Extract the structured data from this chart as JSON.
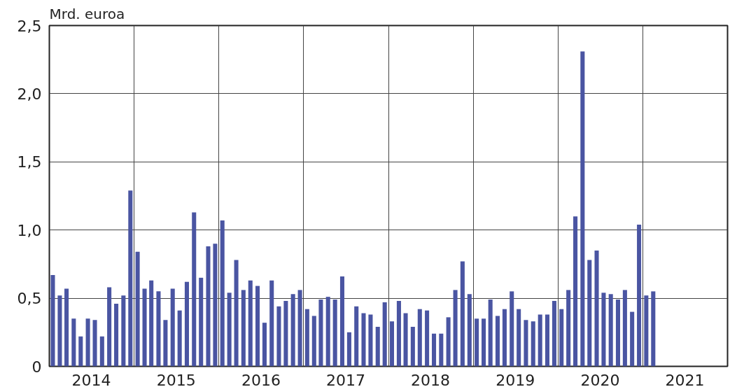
{
  "chart_data": {
    "type": "bar",
    "ylabel": "Mrd. euroa",
    "color": "#4a55a2",
    "x": [
      "2014-01-16",
      "2014-02-15",
      "2014-03-16",
      "2014-04-16",
      "2014-05-16",
      "2014-06-16",
      "2014-07-16",
      "2014-08-16",
      "2014-09-16",
      "2014-10-16",
      "2014-11-16",
      "2014-12-16",
      "2015-01-16",
      "2015-02-15",
      "2015-03-16",
      "2015-04-16",
      "2015-05-16",
      "2015-06-16",
      "2015-07-16",
      "2015-08-16",
      "2015-09-16",
      "2015-10-16",
      "2015-11-16",
      "2015-12-16",
      "2016-01-16",
      "2016-02-15",
      "2016-03-16",
      "2016-04-16",
      "2016-05-16",
      "2016-06-16",
      "2016-07-16",
      "2016-08-16",
      "2016-09-16",
      "2016-10-16",
      "2016-11-16",
      "2016-12-16",
      "2017-01-16",
      "2017-02-15",
      "2017-03-16",
      "2017-04-16",
      "2017-05-16",
      "2017-06-16",
      "2017-07-16",
      "2017-08-16",
      "2017-09-16",
      "2017-10-16",
      "2017-11-16",
      "2017-12-16",
      "2018-01-16",
      "2018-02-15",
      "2018-03-16",
      "2018-04-16",
      "2018-05-16",
      "2018-06-16",
      "2018-07-16",
      "2018-08-16",
      "2018-09-16",
      "2018-10-16",
      "2018-11-16",
      "2018-12-16",
      "2019-01-16",
      "2019-02-15",
      "2019-03-16",
      "2019-04-16",
      "2019-05-16",
      "2019-06-16",
      "2019-07-16",
      "2019-08-16",
      "2019-09-16",
      "2019-10-16",
      "2019-11-16",
      "2019-12-16",
      "2020-01-16",
      "2020-02-15",
      "2020-03-16",
      "2020-04-16",
      "2020-05-16",
      "2020-06-16",
      "2020-07-16",
      "2020-08-16",
      "2020-09-16",
      "2020-10-16",
      "2020-11-16",
      "2020-12-16",
      "2021-01-16",
      "2021-02-15"
    ],
    "values": [
      0.67,
      0.52,
      0.57,
      0.35,
      0.22,
      0.35,
      0.34,
      0.22,
      0.58,
      0.46,
      0.52,
      1.29,
      0.84,
      0.57,
      0.63,
      0.55,
      0.34,
      0.57,
      0.41,
      0.62,
      1.13,
      0.65,
      0.88,
      0.9,
      1.07,
      0.54,
      0.78,
      0.56,
      0.63,
      0.59,
      0.32,
      0.63,
      0.44,
      0.48,
      0.53,
      0.56,
      0.42,
      0.37,
      0.49,
      0.51,
      0.49,
      0.66,
      0.25,
      0.44,
      0.39,
      0.38,
      0.29,
      0.47,
      0.33,
      0.48,
      0.39,
      0.29,
      0.42,
      0.41,
      0.24,
      0.24,
      0.36,
      0.56,
      0.77,
      0.53,
      0.35,
      0.35,
      0.49,
      0.37,
      0.42,
      0.55,
      0.42,
      0.34,
      0.33,
      0.38,
      0.38,
      0.48,
      0.42,
      0.56,
      1.1,
      2.31,
      0.78,
      0.85,
      0.54,
      0.53,
      0.49,
      0.56,
      0.4,
      1.04,
      0.52,
      0.55
    ],
    "xlim": [
      "2014-01",
      "2022-01"
    ],
    "xticks": [
      {
        "value": "2014-07",
        "label": "2014"
      },
      {
        "value": "2015-07",
        "label": "2015"
      },
      {
        "value": "2016-07",
        "label": "2016"
      },
      {
        "value": "2017-07",
        "label": "2017"
      },
      {
        "value": "2018-07",
        "label": "2018"
      },
      {
        "value": "2019-07",
        "label": "2019"
      },
      {
        "value": "2020-07",
        "label": "2020"
      },
      {
        "value": "2021-07",
        "label": "2021"
      },
      {
        "value": "2015-01",
        "label": null
      },
      {
        "value": "2016-01",
        "label": null
      },
      {
        "value": "2017-01",
        "label": null
      },
      {
        "value": "2018-01",
        "label": null
      },
      {
        "value": "2019-01",
        "label": null
      },
      {
        "value": "2020-01",
        "label": null
      },
      {
        "value": "2021-01",
        "label": null
      }
    ],
    "ylim": [
      0,
      2.5
    ],
    "yticks": [
      0,
      {
        "value": 0.5,
        "label": "0,5"
      },
      {
        "value": 1,
        "label": "1,0"
      },
      {
        "value": 1.5,
        "label": "1,5"
      },
      {
        "value": 2,
        "label": "2,0"
      },
      {
        "value": 2.5,
        "label": "2,5"
      }
    ],
    "grid": true
  }
}
